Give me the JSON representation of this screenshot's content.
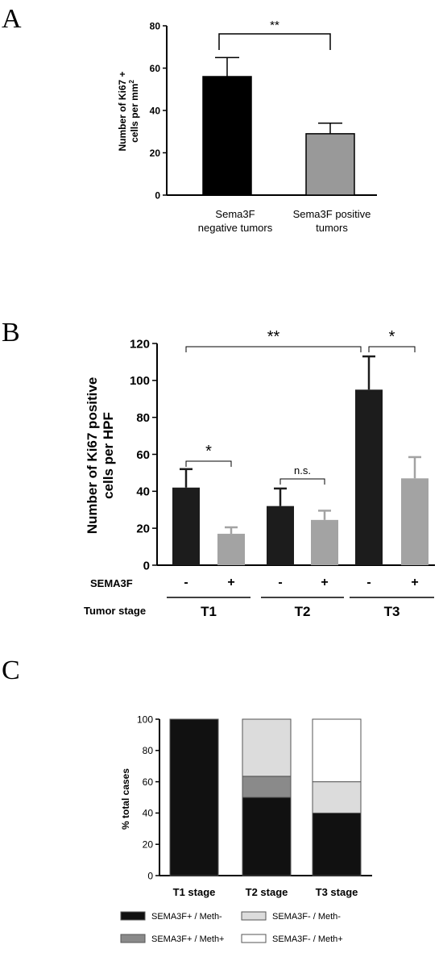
{
  "panels": [
    "A",
    "B",
    "C"
  ],
  "chart_data": [
    {
      "type": "bar",
      "panel": "A",
      "ylabel_line1": "Number of Ki67 +",
      "ylabel_line2": "cells per mm",
      "ylabel_sup": "2",
      "ylim": [
        0,
        80
      ],
      "yticks": [
        0,
        20,
        40,
        60,
        80
      ],
      "categories": [
        {
          "line1": "Sema3F",
          "line2": "negative tumors"
        },
        {
          "line1": "Sema3F positive",
          "line2": "tumors"
        }
      ],
      "values": [
        56,
        29
      ],
      "errors": [
        9,
        5
      ],
      "colors": [
        "#000000",
        "#999999"
      ],
      "significance": [
        {
          "between": [
            0,
            1
          ],
          "label": "**"
        }
      ]
    },
    {
      "type": "bar",
      "panel": "B",
      "ylabel_line1": "Number of Ki67 positive",
      "ylabel_line2": "cells per HPF",
      "ylim": [
        0,
        120
      ],
      "yticks": [
        0,
        20,
        40,
        60,
        80,
        100,
        120
      ],
      "row_sema3f_label": "SEMA3F",
      "row_stage_label": "Tumor stage",
      "groups": [
        "T1",
        "T2",
        "T3"
      ],
      "sema3f_status": [
        "-",
        "+",
        "-",
        "+",
        "-",
        "+"
      ],
      "values": [
        42,
        17,
        32,
        24.5,
        95,
        47
      ],
      "errors": [
        10,
        3.5,
        9.5,
        5,
        18,
        11.5
      ],
      "colors": [
        "#1c1c1c",
        "#a3a3a3",
        "#1c1c1c",
        "#a3a3a3",
        "#1c1c1c",
        "#a3a3a3"
      ],
      "significance": [
        {
          "between": [
            0,
            1
          ],
          "label": "*"
        },
        {
          "between": [
            2,
            3
          ],
          "label": "n.s."
        },
        {
          "between": [
            4,
            5
          ],
          "label": "*"
        },
        {
          "between": [
            0,
            4
          ],
          "label": "**"
        }
      ]
    },
    {
      "type": "bar",
      "stacked": true,
      "panel": "C",
      "ylabel": "% total cases",
      "ylim": [
        0,
        100
      ],
      "yticks": [
        0,
        20,
        40,
        60,
        80,
        100
      ],
      "categories": [
        "T1 stage",
        "T2 stage",
        "T3 stage"
      ],
      "series": [
        {
          "name": "SEMA3F+ / Meth-",
          "color": "#111111",
          "values": [
            100,
            50,
            40
          ]
        },
        {
          "name": "SEMA3F+ / Meth+",
          "color": "#8a8a8a",
          "values": [
            0,
            13.5,
            0
          ]
        },
        {
          "name": "SEMA3F- / Meth-",
          "color": "#dcdcdc",
          "values": [
            0,
            36.5,
            20
          ]
        },
        {
          "name": "SEMA3F- / Meth+",
          "color": "#ffffff",
          "values": [
            0,
            0,
            40
          ]
        }
      ]
    }
  ]
}
